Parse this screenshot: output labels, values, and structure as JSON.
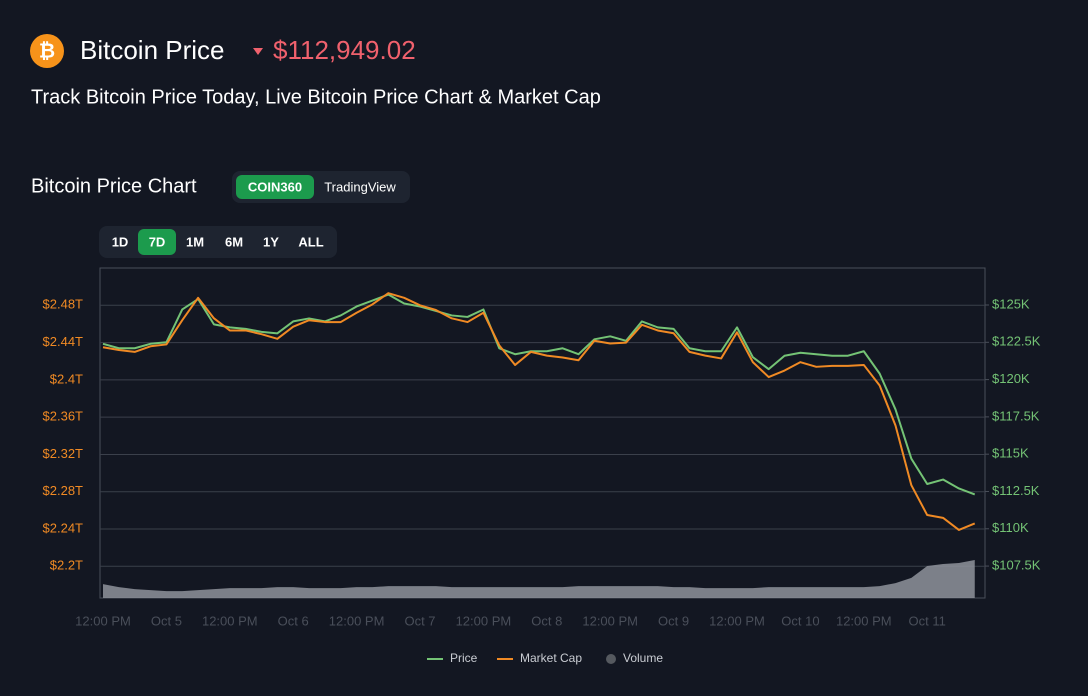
{
  "header": {
    "icon": "₿",
    "title": "Bitcoin Price",
    "price": "$112,949.02",
    "subtitle": "Track Bitcoin Price Today, Live Bitcoin Price Chart & Market Cap"
  },
  "chart_header": {
    "title": "Bitcoin Price Chart",
    "sources": [
      "COIN360",
      "TradingView"
    ],
    "active_source": 0
  },
  "ranges": {
    "options": [
      "1D",
      "7D",
      "1M",
      "6M",
      "1Y",
      "ALL"
    ],
    "active": 1
  },
  "chart_data": {
    "type": "line",
    "categories": [
      "12:00 PM",
      null,
      null,
      null,
      "Oct 5",
      null,
      null,
      null,
      "12:00 PM",
      null,
      null,
      null,
      "Oct 6",
      null,
      null,
      null,
      "12:00 PM",
      null,
      null,
      null,
      "Oct 7",
      null,
      null,
      null,
      "12:00 PM",
      null,
      null,
      null,
      "Oct 8",
      null,
      null,
      null,
      "12:00 PM",
      null,
      null,
      null,
      "Oct 9",
      null,
      null,
      null,
      "12:00 PM",
      null,
      null,
      null,
      "Oct 10",
      null,
      null,
      null,
      "12:00 PM",
      null,
      null,
      null,
      "Oct 11",
      null,
      null,
      null
    ],
    "series": [
      {
        "name": "Price",
        "color": "#74c375",
        "axis": "y2",
        "values": [
          122.4,
          122.1,
          122.1,
          122.4,
          122.5,
          124.7,
          125.4,
          123.7,
          123.5,
          123.4,
          123.2,
          123.1,
          123.9,
          124.1,
          123.9,
          124.3,
          124.9,
          125.3,
          125.7,
          125.1,
          124.9,
          124.6,
          124.3,
          124.2,
          124.7,
          122.1,
          121.7,
          121.9,
          121.9,
          122.1,
          121.7,
          122.7,
          122.9,
          122.6,
          123.9,
          123.5,
          123.4,
          122.1,
          121.9,
          121.9,
          123.5,
          121.5,
          120.7,
          121.6,
          121.8,
          121.7,
          121.6,
          121.6,
          121.9,
          120.4,
          118.0,
          114.7,
          113.0,
          113.3,
          112.7,
          112.3
        ]
      },
      {
        "name": "Market Cap",
        "color": "#f08a24",
        "values": [
          2.435,
          2.432,
          2.43,
          2.436,
          2.438,
          2.464,
          2.488,
          2.466,
          2.453,
          2.453,
          2.449,
          2.444,
          2.457,
          2.464,
          2.462,
          2.462,
          2.472,
          2.481,
          2.493,
          2.488,
          2.48,
          2.475,
          2.466,
          2.462,
          2.472,
          2.437,
          2.416,
          2.43,
          2.426,
          2.424,
          2.421,
          2.442,
          2.439,
          2.44,
          2.459,
          2.453,
          2.45,
          2.43,
          2.426,
          2.423,
          2.451,
          2.419,
          2.403,
          2.41,
          2.419,
          2.414,
          2.415,
          2.415,
          2.416,
          2.394,
          2.351,
          2.287,
          2.255,
          2.252,
          2.239,
          2.246
        ]
      },
      {
        "name": "Volume",
        "color": "#8f939b",
        "axis": "volume",
        "values": [
          4.2,
          3.3,
          2.7,
          2.4,
          2.1,
          2.1,
          2.4,
          2.7,
          3.0,
          3.0,
          3.0,
          3.3,
          3.3,
          3.0,
          3.0,
          3.0,
          3.3,
          3.3,
          3.6,
          3.6,
          3.6,
          3.6,
          3.3,
          3.3,
          3.3,
          3.3,
          3.3,
          3.3,
          3.3,
          3.3,
          3.6,
          3.6,
          3.6,
          3.6,
          3.6,
          3.6,
          3.3,
          3.3,
          3.0,
          3.0,
          3.0,
          3.0,
          3.3,
          3.3,
          3.3,
          3.3,
          3.3,
          3.3,
          3.3,
          3.6,
          4.5,
          6.1,
          9.7,
          10.3,
          10.6,
          11.5
        ]
      }
    ],
    "ylim": [
      2.166,
      2.52
    ],
    "yticks": [
      {
        "value": 2.2,
        "label": "$2.2T"
      },
      {
        "value": 2.24,
        "label": "$2.24T"
      },
      {
        "value": 2.28,
        "label": "$2.28T"
      },
      {
        "value": 2.32,
        "label": "$2.32T"
      },
      {
        "value": 2.36,
        "label": "$2.36T"
      },
      {
        "value": 2.4,
        "label": "$2.4T"
      },
      {
        "value": 2.44,
        "label": "$2.44T"
      },
      {
        "value": 2.48,
        "label": "$2.48T"
      }
    ],
    "y2lim": [
      105.36,
      127.48
    ],
    "y2ticks": [
      {
        "value": 107.5,
        "label": "$107.5K"
      },
      {
        "value": 110,
        "label": "$110K"
      },
      {
        "value": 112.5,
        "label": "$112.5K"
      },
      {
        "value": 115,
        "label": "$115K"
      },
      {
        "value": 117.5,
        "label": "$117.5K"
      },
      {
        "value": 120,
        "label": "$120K"
      },
      {
        "value": 122.5,
        "label": "$122.5K"
      },
      {
        "value": 125,
        "label": "$125K"
      }
    ],
    "vlim": [
      0,
      100
    ],
    "grid": true
  }
}
